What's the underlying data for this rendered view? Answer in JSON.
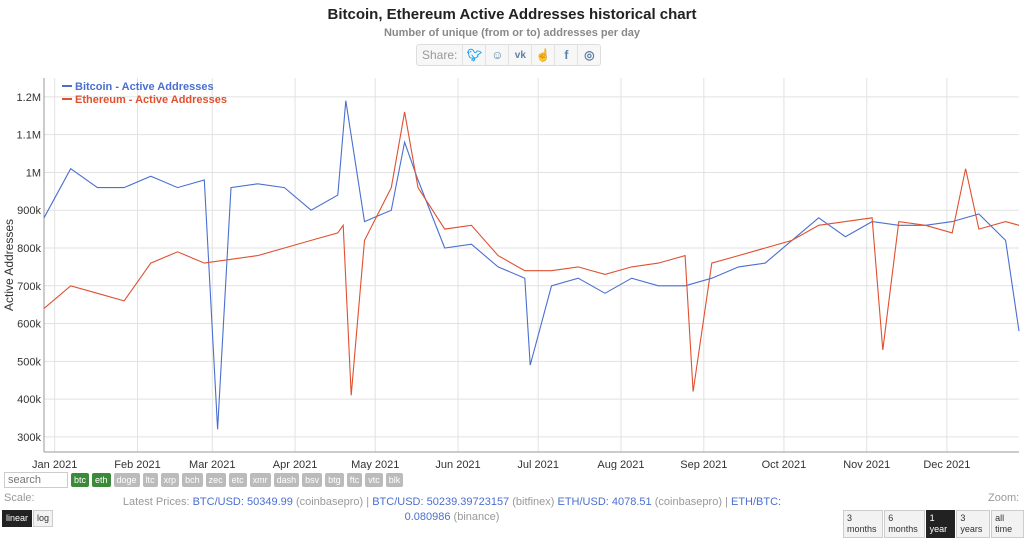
{
  "header": {
    "title": "Bitcoin, Ethereum Active Addresses historical chart",
    "subtitle": "Number of unique (from or to) addresses per day",
    "share_label": "Share:",
    "share_icons": [
      "twitter-icon",
      "reddit-icon",
      "vk-icon",
      "like-icon",
      "facebook-icon",
      "weibo-icon"
    ]
  },
  "chart_data": {
    "type": "line",
    "ylabel": "Active Addresses",
    "ylim": [
      260000,
      1250000
    ],
    "y_ticks": [
      300000,
      400000,
      500000,
      600000,
      700000,
      800000,
      900000,
      1000000,
      1100000,
      1200000
    ],
    "y_tick_labels": [
      "300k",
      "400k",
      "500k",
      "600k",
      "700k",
      "800k",
      "900k",
      "1M",
      "1.1M",
      "1.2M"
    ],
    "x_tick_labels": [
      "Jan 2021",
      "Feb 2021",
      "Mar 2021",
      "Apr 2021",
      "May 2021",
      "Jun 2021",
      "Jul 2021",
      "Aug 2021",
      "Sep 2021",
      "Oct 2021",
      "Nov 2021",
      "Dec 2021"
    ],
    "x_range": [
      "2020-12-28",
      "2021-12-28"
    ],
    "grid": true,
    "legend_position": "top-left",
    "series": [
      {
        "name": "Bitcoin - Active Addresses",
        "color": "#4a6fcf",
        "x": [
          "2020-12-28",
          "2021-01-07",
          "2021-01-17",
          "2021-01-27",
          "2021-02-06",
          "2021-02-16",
          "2021-02-26",
          "2021-03-03",
          "2021-03-08",
          "2021-03-18",
          "2021-03-28",
          "2021-04-07",
          "2021-04-17",
          "2021-04-20",
          "2021-04-27",
          "2021-05-07",
          "2021-05-12",
          "2021-05-17",
          "2021-05-27",
          "2021-06-06",
          "2021-06-16",
          "2021-06-26",
          "2021-06-28",
          "2021-07-06",
          "2021-07-16",
          "2021-07-26",
          "2021-08-05",
          "2021-08-15",
          "2021-08-25",
          "2021-09-04",
          "2021-09-14",
          "2021-09-24",
          "2021-10-04",
          "2021-10-14",
          "2021-10-24",
          "2021-11-03",
          "2021-11-13",
          "2021-11-23",
          "2021-12-03",
          "2021-12-13",
          "2021-12-23",
          "2021-12-28"
        ],
        "values": [
          880000,
          1010000,
          960000,
          960000,
          990000,
          960000,
          980000,
          320000,
          960000,
          970000,
          960000,
          900000,
          940000,
          1190000,
          870000,
          900000,
          1080000,
          980000,
          800000,
          810000,
          750000,
          720000,
          490000,
          700000,
          720000,
          680000,
          720000,
          700000,
          700000,
          720000,
          750000,
          760000,
          820000,
          880000,
          830000,
          870000,
          860000,
          860000,
          870000,
          890000,
          820000,
          580000
        ]
      },
      {
        "name": "Ethereum - Active Addresses",
        "color": "#e05030",
        "x": [
          "2020-12-28",
          "2021-01-07",
          "2021-01-17",
          "2021-01-27",
          "2021-02-06",
          "2021-02-16",
          "2021-02-26",
          "2021-03-08",
          "2021-03-18",
          "2021-03-28",
          "2021-04-07",
          "2021-04-17",
          "2021-04-19",
          "2021-04-22",
          "2021-04-27",
          "2021-05-07",
          "2021-05-12",
          "2021-05-17",
          "2021-05-27",
          "2021-06-06",
          "2021-06-16",
          "2021-06-26",
          "2021-07-06",
          "2021-07-16",
          "2021-07-26",
          "2021-08-05",
          "2021-08-15",
          "2021-08-25",
          "2021-08-28",
          "2021-09-04",
          "2021-09-14",
          "2021-09-24",
          "2021-10-04",
          "2021-10-14",
          "2021-10-24",
          "2021-11-03",
          "2021-11-07",
          "2021-11-13",
          "2021-11-23",
          "2021-12-03",
          "2021-12-08",
          "2021-12-13",
          "2021-12-23",
          "2021-12-28"
        ],
        "values": [
          640000,
          700000,
          680000,
          660000,
          760000,
          790000,
          760000,
          770000,
          780000,
          800000,
          820000,
          840000,
          860000,
          410000,
          820000,
          960000,
          1160000,
          960000,
          850000,
          860000,
          780000,
          740000,
          740000,
          750000,
          730000,
          750000,
          760000,
          780000,
          420000,
          760000,
          780000,
          800000,
          820000,
          860000,
          870000,
          880000,
          530000,
          870000,
          860000,
          840000,
          1010000,
          850000,
          870000,
          860000
        ]
      }
    ]
  },
  "controls": {
    "search_placeholder": "search",
    "coins": [
      "btc",
      "eth",
      "doge",
      "ltc",
      "xrp",
      "bch",
      "zec",
      "etc",
      "xmr",
      "dash",
      "bsv",
      "btg",
      "ftc",
      "vtc",
      "blk"
    ],
    "active_coins": [
      "btc",
      "eth"
    ],
    "scale_label": "Scale:",
    "scale_options": [
      "linear",
      "log"
    ],
    "scale_selected": "linear",
    "zoom_label": "Zoom:",
    "zoom_options": [
      "3 months",
      "6 months",
      "1 year",
      "3 years",
      "all time"
    ],
    "zoom_selected": "1 year"
  },
  "prices": {
    "label": "Latest Prices:",
    "p1_pair": "BTC/USD:",
    "p1_value": "50349.99",
    "p1_src": "(coinbasepro)",
    "p2_pair": "BTC/USD:",
    "p2_value": "50239.39723157",
    "p2_src": "(bitfinex)",
    "p3_pair": "ETH/USD:",
    "p3_value": "4078.51",
    "p3_src": "(coinbasepro)",
    "p4_pair": "ETH/BTC:",
    "p4_value": "0.080986",
    "p4_src": "(binance)"
  }
}
